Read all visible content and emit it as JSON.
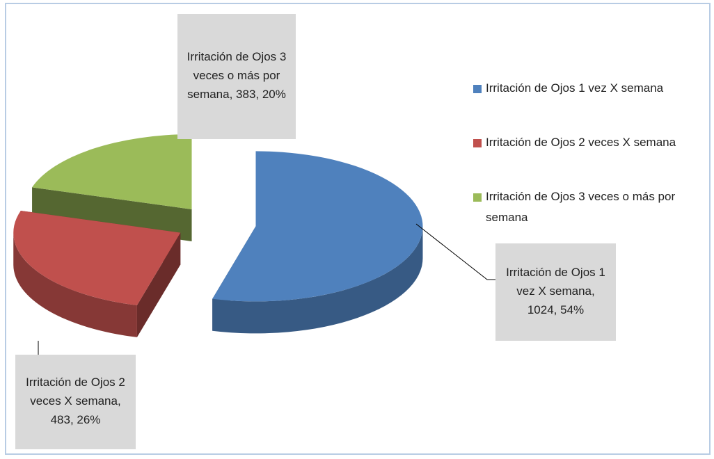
{
  "chart_data": {
    "type": "pie",
    "categories": [
      "Irritación de Ojos 1 vez X semana",
      "Irritación de Ojos 2 veces X semana",
      "Irritación de Ojos 3 veces o más por semana"
    ],
    "values": [
      1024,
      483,
      383
    ],
    "value_labels": [
      "Irritación de Ojos 1 vez X semana, 1024, 54%",
      "Irritación de Ojos 2 veces X semana, 483, 26%",
      "Irritación de Ojos 3 veces o más por semana, 383, 20%"
    ],
    "colors": [
      "#4f81bd",
      "#c0504d",
      "#9bbb59"
    ],
    "legend": "right"
  }
}
